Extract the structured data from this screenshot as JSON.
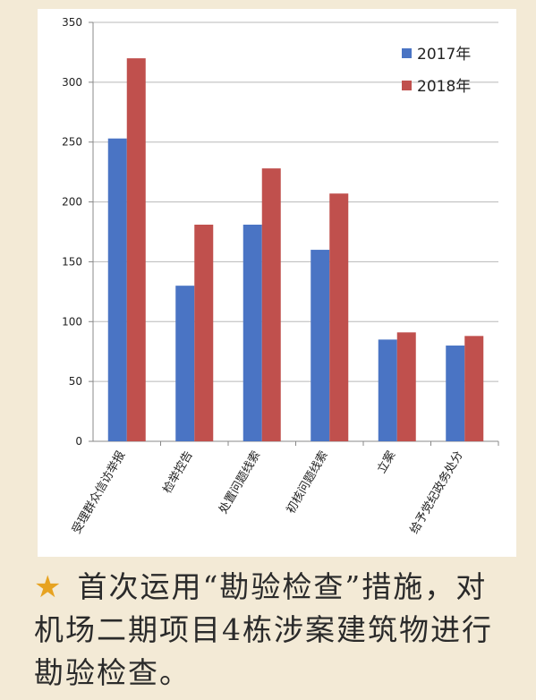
{
  "chart_data": {
    "type": "bar",
    "categories": [
      "受理群众信访举报",
      "检举控告",
      "处置问题线索",
      "初核问题线索",
      "立案",
      "给予党纪政务处分"
    ],
    "series": [
      {
        "name": "2017年",
        "values": [
          253,
          130,
          181,
          160,
          85,
          80
        ],
        "color": "#4a74c4"
      },
      {
        "name": "2018年",
        "values": [
          320,
          181,
          228,
          207,
          91,
          88
        ],
        "color": "#c0504d"
      }
    ],
    "ylim": [
      0,
      350
    ],
    "yticks": [
      0,
      50,
      100,
      150,
      200,
      250,
      300,
      350
    ],
    "grid": true,
    "legend": "top-right"
  },
  "caption": {
    "star_icon": "star-icon",
    "star_color": "#e7a321",
    "text": "首次运用“勘验检查”措施，对机场二期项目4栋涉案建筑物进行勘验检查。"
  }
}
